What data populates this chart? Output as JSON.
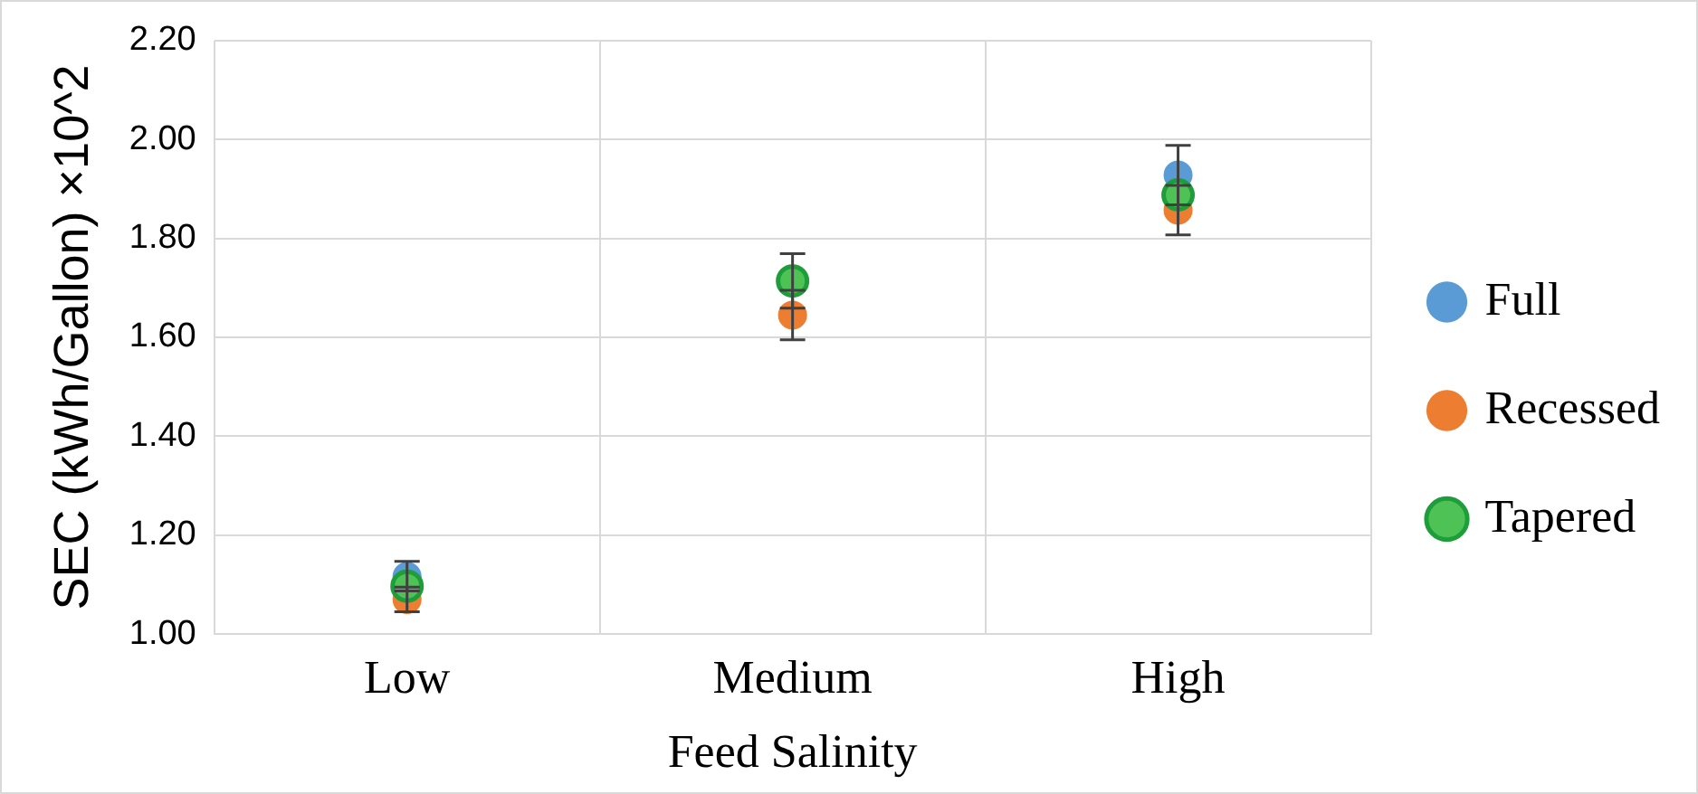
{
  "chart_data": {
    "type": "scatter",
    "xlabel": "Feed Salinity",
    "ylabel": "SEC (kWh/Gallon) ×10^2",
    "categories": [
      "Low",
      "Medium",
      "High"
    ],
    "series": [
      {
        "name": "Full",
        "color": "#5b9bd5",
        "values": [
          1.117,
          null,
          1.928
        ],
        "errors": [
          0.03,
          null,
          0.06
        ]
      },
      {
        "name": "Recessed",
        "color": "#ed7d31",
        "values": [
          1.07,
          1.645,
          1.857
        ],
        "errors": [
          0.025,
          0.05,
          0.05
        ]
      },
      {
        "name": "Tapered",
        "color": "#4fc256",
        "values": [
          1.097,
          1.714,
          1.888
        ],
        "errors": [
          null,
          0.055,
          null
        ]
      }
    ],
    "ylim": [
      1.0,
      2.2
    ],
    "yticks": [
      {
        "value": 1.0,
        "label": "1.00"
      },
      {
        "value": 1.2,
        "label": "1.20"
      },
      {
        "value": 1.4,
        "label": "1.40"
      },
      {
        "value": 1.6,
        "label": "1.60"
      },
      {
        "value": 1.8,
        "label": "1.80"
      },
      {
        "value": 2.0,
        "label": "2.00"
      },
      {
        "value": 2.2,
        "label": "2.20"
      }
    ],
    "grid": true,
    "legend": "right",
    "marker": "circle"
  }
}
